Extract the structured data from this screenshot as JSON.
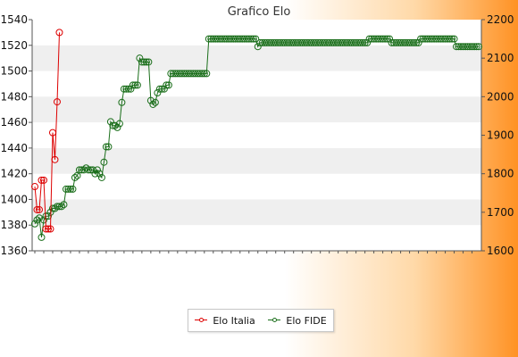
{
  "chart_data": {
    "type": "line",
    "title": "Grafico Elo",
    "y_left": {
      "ticks": [
        "1360",
        "1380",
        "1400",
        "1420",
        "1440",
        "1460",
        "1480",
        "1500",
        "1520",
        "1540"
      ],
      "range": [
        1360,
        1540
      ]
    },
    "y_right": {
      "ticks": [
        "1600",
        "1700",
        "1800",
        "1900",
        "2000",
        "2100",
        "2200"
      ],
      "range": [
        1600,
        2200
      ]
    },
    "grid": "horizontal-alternating",
    "legend_position": "bottom-center",
    "series": [
      {
        "name": "Elo Italia",
        "color": "#dd0000",
        "axis": "left",
        "values": [
          1410,
          1392,
          1392,
          1415,
          1415,
          1377,
          1377,
          1377,
          1452,
          1431,
          1476,
          1530
        ]
      },
      {
        "name": "Elo FIDE",
        "color": "#1a6e1a",
        "axis": "right",
        "values": [
          1670,
          1680,
          1685,
          1635,
          1680,
          1690,
          1690,
          1700,
          1710,
          1710,
          1715,
          1715,
          1715,
          1720,
          1760,
          1760,
          1760,
          1760,
          1790,
          1795,
          1810,
          1810,
          1810,
          1815,
          1810,
          1810,
          1810,
          1800,
          1810,
          1800,
          1790,
          1830,
          1870,
          1870,
          1935,
          1925,
          1925,
          1920,
          1930,
          1985,
          2020,
          2020,
          2020,
          2020,
          2030,
          2030,
          2030,
          2100,
          2090,
          2090,
          2090,
          2090,
          1990,
          1980,
          1985,
          2010,
          2020,
          2020,
          2020,
          2030,
          2030,
          2060,
          2060,
          2060,
          2060,
          2060,
          2060,
          2060,
          2060,
          2060,
          2060,
          2060,
          2060,
          2060,
          2060,
          2060,
          2060,
          2060,
          2150,
          2150,
          2150,
          2150,
          2150,
          2150,
          2150,
          2150,
          2150,
          2150,
          2150,
          2150,
          2150,
          2150,
          2150,
          2150,
          2150,
          2150,
          2150,
          2150,
          2150,
          2150,
          2130,
          2140,
          2140,
          2140,
          2140,
          2140,
          2140,
          2140,
          2140,
          2140,
          2140,
          2140,
          2140,
          2140,
          2140,
          2140,
          2140,
          2140,
          2140,
          2140,
          2140,
          2140,
          2140,
          2140,
          2140,
          2140,
          2140,
          2140,
          2140,
          2140,
          2140,
          2140,
          2140,
          2140,
          2140,
          2140,
          2140,
          2140,
          2140,
          2140,
          2140,
          2140,
          2140,
          2140,
          2140,
          2140,
          2140,
          2140,
          2140,
          2140,
          2150,
          2150,
          2150,
          2150,
          2150,
          2150,
          2150,
          2150,
          2150,
          2150,
          2140,
          2140,
          2140,
          2140,
          2140,
          2140,
          2140,
          2140,
          2140,
          2140,
          2140,
          2140,
          2140,
          2150,
          2150,
          2150,
          2150,
          2150,
          2150,
          2150,
          2150,
          2150,
          2150,
          2150,
          2150,
          2150,
          2150,
          2150,
          2150,
          2130,
          2130,
          2130,
          2130,
          2130,
          2130,
          2130,
          2130,
          2130,
          2130,
          2130
        ]
      }
    ]
  }
}
